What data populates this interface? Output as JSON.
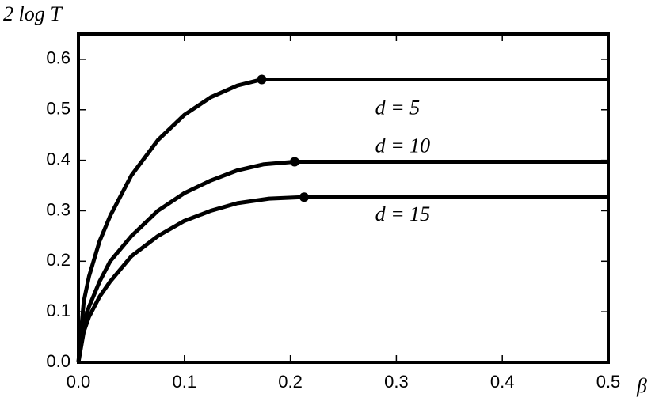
{
  "chart_data": {
    "type": "line",
    "y_label": "2 log T",
    "x_label": "β",
    "xlim": [
      0,
      0.5
    ],
    "ylim": [
      0,
      0.65
    ],
    "xticks": [
      {
        "value": 0,
        "label": "0.0"
      },
      0.1,
      0.2,
      0.3,
      0.4,
      0.5
    ],
    "yticks": [
      {
        "value": 0,
        "label": "0.0"
      },
      0.1,
      0.2,
      0.3,
      0.4,
      0.5,
      0.6
    ],
    "color": "#000000",
    "series": [
      {
        "name": "d = 5",
        "x": [
          0,
          0.005,
          0.01,
          0.02,
          0.03,
          0.05,
          0.075,
          0.1,
          0.125,
          0.15,
          0.173,
          0.5
        ],
        "values": [
          0,
          0.12,
          0.17,
          0.24,
          0.29,
          0.37,
          0.44,
          0.49,
          0.525,
          0.548,
          0.56,
          0.56
        ]
      },
      {
        "name": "d = 10",
        "x": [
          0,
          0.005,
          0.01,
          0.02,
          0.03,
          0.05,
          0.075,
          0.1,
          0.125,
          0.15,
          0.175,
          0.204,
          0.5
        ],
        "values": [
          0,
          0.08,
          0.11,
          0.16,
          0.2,
          0.25,
          0.3,
          0.335,
          0.36,
          0.38,
          0.392,
          0.397,
          0.397
        ]
      },
      {
        "name": "d = 15",
        "x": [
          0,
          0.005,
          0.01,
          0.02,
          0.03,
          0.05,
          0.075,
          0.1,
          0.125,
          0.15,
          0.18,
          0.213,
          0.5
        ],
        "values": [
          0,
          0.06,
          0.09,
          0.13,
          0.16,
          0.21,
          0.25,
          0.28,
          0.3,
          0.315,
          0.324,
          0.327,
          0.327
        ]
      }
    ]
  }
}
